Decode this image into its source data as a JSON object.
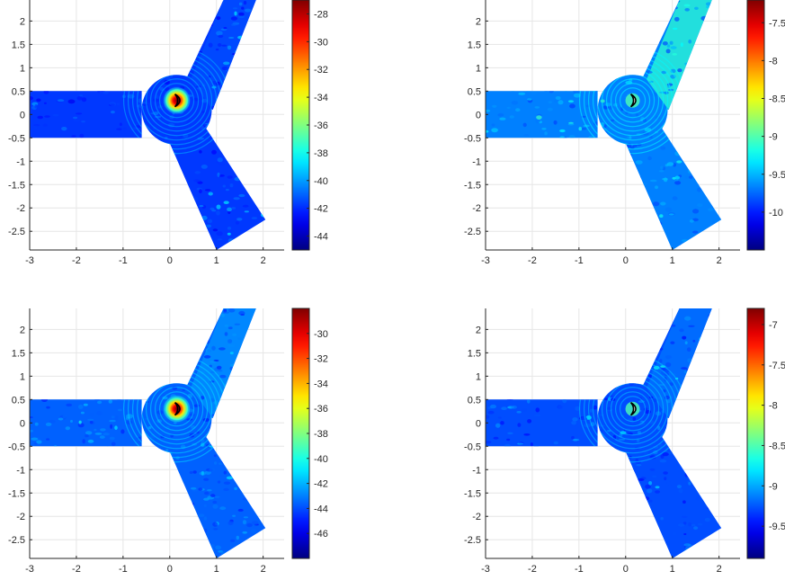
{
  "chart_data": [
    {
      "type": "heatmap",
      "title": "",
      "xlabel": "",
      "ylabel": "",
      "xlim": [
        -3,
        2.45
      ],
      "ylim": [
        -2.9,
        2.45
      ],
      "x_ticks": [
        -3,
        -2,
        -1,
        0,
        1,
        2
      ],
      "y_ticks": [
        2,
        1.5,
        1,
        0.5,
        0,
        -0.5,
        -1,
        -1.5,
        -2,
        -2.5
      ],
      "grid": true,
      "colormap": "jet",
      "background_level": 0.18,
      "hotspot": {
        "x": 0.15,
        "y": 0.3,
        "peak": "red",
        "marker": false
      },
      "arms_bright_level": 0.2,
      "colorbar": {
        "ticks": [
          -28,
          -30,
          -32,
          -34,
          -36,
          -38,
          -40,
          -42,
          -44
        ],
        "range": [
          -45,
          -27
        ]
      }
    },
    {
      "type": "heatmap",
      "title": "",
      "xlabel": "",
      "ylabel": "",
      "xlim": [
        -3,
        2.45
      ],
      "ylim": [
        -2.9,
        2.45
      ],
      "x_ticks": [
        -3,
        -2,
        -1,
        0,
        1,
        2
      ],
      "y_ticks": [
        2,
        1.5,
        1,
        0.5,
        0,
        -0.5,
        -1,
        -1.5,
        -2,
        -2.5
      ],
      "grid": true,
      "colormap": "jet",
      "background_level": 0.25,
      "hotspot": {
        "x": 0.15,
        "y": 0.3,
        "peak": "cyan",
        "marker": true
      },
      "arms_bright_level": 0.42,
      "colorbar": {
        "ticks": [
          -7.5,
          -8,
          -8.5,
          -9,
          -9.5,
          -10
        ],
        "range": [
          -10.5,
          -7.2
        ]
      }
    },
    {
      "type": "heatmap",
      "title": "",
      "xlabel": "",
      "ylabel": "",
      "xlim": [
        -3,
        2.45
      ],
      "ylim": [
        -2.9,
        2.45
      ],
      "x_ticks": [
        -3,
        -2,
        -1,
        0,
        1,
        2
      ],
      "y_ticks": [
        2,
        1.5,
        1,
        0.5,
        0,
        -0.5,
        -1,
        -1.5,
        -2,
        -2.5
      ],
      "grid": true,
      "colormap": "jet",
      "background_level": 0.22,
      "hotspot": {
        "x": 0.15,
        "y": 0.3,
        "peak": "red",
        "marker": false
      },
      "arms_bright_level": 0.27,
      "colorbar": {
        "ticks": [
          -30,
          -32,
          -34,
          -36,
          -38,
          -40,
          -42,
          -44,
          -46
        ],
        "range": [
          -48,
          -28
        ]
      }
    },
    {
      "type": "heatmap",
      "title": "",
      "xlabel": "",
      "ylabel": "",
      "xlim": [
        -3,
        2.45
      ],
      "ylim": [
        -2.9,
        2.45
      ],
      "x_ticks": [
        -3,
        -2,
        -1,
        0,
        1,
        2
      ],
      "y_ticks": [
        2,
        1.5,
        1,
        0.5,
        0,
        -0.5,
        -1,
        -1.5,
        -2,
        -2.5
      ],
      "grid": true,
      "colormap": "jet",
      "background_level": 0.2,
      "hotspot": {
        "x": 0.15,
        "y": 0.3,
        "peak": "cyan",
        "marker": true
      },
      "arms_bright_level": 0.24,
      "colorbar": {
        "ticks": [
          -7,
          -7.5,
          -8,
          -8.5,
          -9,
          -9.5
        ],
        "range": [
          -9.9,
          -6.8
        ]
      }
    }
  ]
}
